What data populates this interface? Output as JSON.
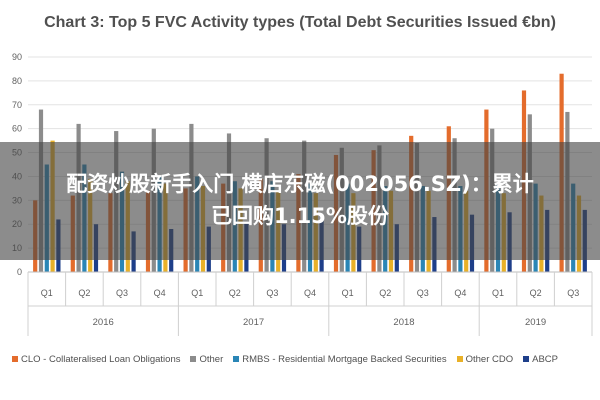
{
  "chart_data": {
    "type": "bar",
    "title": "Chart 3: Top 5 FVC Activity types (Total Debt Securities Issued €bn)",
    "ylim": [
      0,
      90
    ],
    "yticks": [
      "0",
      "10",
      "20",
      "30",
      "40",
      "50",
      "60",
      "70",
      "80",
      "90"
    ],
    "grid": true,
    "legend_position": "bottom",
    "categories": [
      "Q1",
      "Q2",
      "Q3",
      "Q4",
      "Q1",
      "Q2",
      "Q3",
      "Q4",
      "Q1",
      "Q2",
      "Q3",
      "Q4",
      "Q1",
      "Q2",
      "Q3"
    ],
    "years": [
      {
        "label": "2016",
        "quarters": 4
      },
      {
        "label": "2017",
        "quarters": 4
      },
      {
        "label": "2018",
        "quarters": 4
      },
      {
        "label": "2019",
        "quarters": 3
      }
    ],
    "series": [
      {
        "name": "CLO - Collateralised Loan Obligations",
        "color": "#e46c2c",
        "values": [
          30,
          32,
          33,
          34,
          35,
          37,
          39,
          41,
          49,
          51,
          57,
          61,
          68,
          76,
          83
        ]
      },
      {
        "name": "Other",
        "color": "#8c8c8c",
        "values": [
          68,
          62,
          59,
          60,
          62,
          58,
          56,
          55,
          52,
          53,
          54,
          56,
          60,
          66,
          67
        ]
      },
      {
        "name": "RMBS - Residential Mortgage Backed Securities",
        "color": "#2a86b6",
        "values": [
          45,
          45,
          42,
          40,
          40,
          38,
          38,
          37,
          37,
          36,
          36,
          36,
          37,
          37,
          37
        ]
      },
      {
        "name": "Other CDO",
        "color": "#e9b128",
        "values": [
          55,
          39,
          38,
          37,
          36,
          35,
          34,
          33,
          33,
          34,
          34,
          34,
          33,
          32,
          32
        ]
      },
      {
        "name": "ABCP",
        "color": "#1e3f8a",
        "values": [
          22,
          20,
          17,
          18,
          19,
          21,
          20,
          22,
          19,
          20,
          23,
          24,
          25,
          26,
          26
        ]
      }
    ]
  },
  "overlay": {
    "headline_line1": "配资炒股新手入门 横店东磁(002056.SZ)：累计",
    "headline_line2": "已回购1.15%股份"
  }
}
